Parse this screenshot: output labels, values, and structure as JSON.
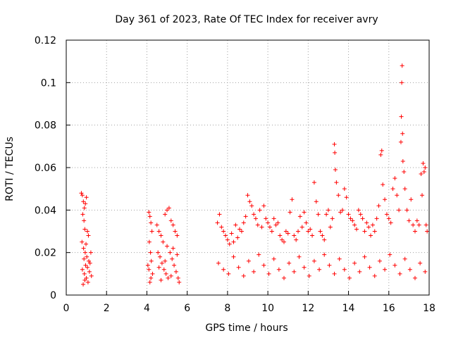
{
  "chart_data": {
    "type": "scatter",
    "title": "Day 361 of 2023, Rate Of TEC Index for receiver avry",
    "xlabel": "GPS time / hours",
    "ylabel": "ROTI / TECUs",
    "xlim": [
      0,
      18
    ],
    "ylim": [
      0,
      0.12
    ],
    "xticks": [
      0,
      2,
      4,
      6,
      8,
      10,
      12,
      14,
      16,
      18
    ],
    "yticks": [
      0,
      0.02,
      0.04,
      0.06,
      0.08,
      0.1,
      0.12
    ],
    "xtick_labels": [
      "0",
      "2",
      "4",
      "6",
      "8",
      "10",
      "12",
      "14",
      "16",
      "18"
    ],
    "ytick_labels": [
      "0",
      "0.02",
      "0.04",
      "0.06",
      "0.08",
      "0.1",
      "0.12"
    ],
    "grid": true,
    "marker": "+",
    "color": "#ff0000",
    "series": [
      {
        "name": "ROTI",
        "points": [
          [
            0.75,
            0.048
          ],
          [
            0.8,
            0.047
          ],
          [
            0.85,
            0.044
          ],
          [
            0.9,
            0.041
          ],
          [
            0.95,
            0.043
          ],
          [
            1.0,
            0.046
          ],
          [
            0.82,
            0.038
          ],
          [
            0.88,
            0.035
          ],
          [
            0.92,
            0.031
          ],
          [
            1.05,
            0.03
          ],
          [
            1.1,
            0.028
          ],
          [
            0.78,
            0.025
          ],
          [
            0.86,
            0.022
          ],
          [
            0.94,
            0.02
          ],
          [
            1.02,
            0.018
          ],
          [
            1.12,
            0.016
          ],
          [
            1.18,
            0.015
          ],
          [
            0.8,
            0.012
          ],
          [
            0.9,
            0.01
          ],
          [
            1.0,
            0.008
          ],
          [
            1.08,
            0.006
          ],
          [
            0.84,
            0.005
          ],
          [
            0.96,
            0.014
          ],
          [
            1.15,
            0.011
          ],
          [
            1.25,
            0.009
          ],
          [
            1.22,
            0.02
          ],
          [
            0.98,
            0.024
          ],
          [
            0.88,
            0.017
          ],
          [
            1.05,
            0.013
          ],
          [
            0.92,
            0.007
          ],
          [
            4.1,
            0.039
          ],
          [
            4.15,
            0.037
          ],
          [
            4.2,
            0.034
          ],
          [
            4.25,
            0.03
          ],
          [
            4.12,
            0.025
          ],
          [
            4.18,
            0.02
          ],
          [
            4.22,
            0.016
          ],
          [
            4.1,
            0.012
          ],
          [
            4.2,
            0.008
          ],
          [
            4.15,
            0.006
          ],
          [
            4.28,
            0.01
          ],
          [
            4.05,
            0.014
          ],
          [
            4.5,
            0.033
          ],
          [
            4.6,
            0.03
          ],
          [
            4.7,
            0.028
          ],
          [
            4.8,
            0.025
          ],
          [
            4.9,
            0.038
          ],
          [
            5.0,
            0.04
          ],
          [
            5.1,
            0.041
          ],
          [
            5.2,
            0.035
          ],
          [
            5.3,
            0.033
          ],
          [
            5.4,
            0.03
          ],
          [
            5.5,
            0.028
          ],
          [
            4.55,
            0.02
          ],
          [
            4.65,
            0.018
          ],
          [
            4.75,
            0.015
          ],
          [
            4.85,
            0.012
          ],
          [
            4.95,
            0.01
          ],
          [
            5.05,
            0.008
          ],
          [
            5.15,
            0.02
          ],
          [
            5.25,
            0.017
          ],
          [
            5.35,
            0.014
          ],
          [
            5.45,
            0.011
          ],
          [
            5.55,
            0.008
          ],
          [
            5.6,
            0.006
          ],
          [
            4.7,
            0.007
          ],
          [
            4.6,
            0.013
          ],
          [
            5.0,
            0.023
          ],
          [
            5.3,
            0.022
          ],
          [
            5.5,
            0.019
          ],
          [
            5.2,
            0.009
          ],
          [
            4.9,
            0.016
          ],
          [
            7.5,
            0.034
          ],
          [
            7.6,
            0.038
          ],
          [
            7.7,
            0.032
          ],
          [
            7.8,
            0.03
          ],
          [
            7.9,
            0.028
          ],
          [
            8.0,
            0.026
          ],
          [
            8.1,
            0.024
          ],
          [
            8.2,
            0.029
          ],
          [
            8.3,
            0.025
          ],
          [
            8.4,
            0.033
          ],
          [
            8.5,
            0.027
          ],
          [
            8.6,
            0.031
          ],
          [
            8.7,
            0.03
          ],
          [
            8.8,
            0.034
          ],
          [
            8.9,
            0.037
          ],
          [
            9.0,
            0.047
          ],
          [
            9.1,
            0.044
          ],
          [
            9.2,
            0.042
          ],
          [
            9.3,
            0.038
          ],
          [
            9.4,
            0.036
          ],
          [
            9.5,
            0.033
          ],
          [
            9.6,
            0.04
          ],
          [
            9.7,
            0.032
          ],
          [
            9.8,
            0.042
          ],
          [
            9.9,
            0.036
          ],
          [
            10.0,
            0.034
          ],
          [
            10.1,
            0.032
          ],
          [
            10.2,
            0.03
          ],
          [
            10.3,
            0.036
          ],
          [
            10.4,
            0.033
          ],
          [
            10.5,
            0.034
          ],
          [
            10.6,
            0.028
          ],
          [
            10.7,
            0.026
          ],
          [
            10.8,
            0.025
          ],
          [
            10.9,
            0.03
          ],
          [
            11.0,
            0.029
          ],
          [
            11.1,
            0.039
          ],
          [
            11.2,
            0.045
          ],
          [
            11.3,
            0.028
          ],
          [
            11.4,
            0.026
          ],
          [
            11.5,
            0.03
          ],
          [
            11.6,
            0.037
          ],
          [
            11.7,
            0.032
          ],
          [
            11.8,
            0.039
          ],
          [
            11.9,
            0.034
          ],
          [
            12.0,
            0.03
          ],
          [
            12.1,
            0.031
          ],
          [
            12.2,
            0.028
          ],
          [
            12.3,
            0.053
          ],
          [
            12.4,
            0.044
          ],
          [
            12.5,
            0.038
          ],
          [
            12.6,
            0.03
          ],
          [
            12.7,
            0.028
          ],
          [
            12.8,
            0.026
          ],
          [
            12.9,
            0.038
          ],
          [
            13.0,
            0.04
          ],
          [
            13.1,
            0.032
          ],
          [
            13.2,
            0.036
          ],
          [
            13.3,
            0.071
          ],
          [
            13.32,
            0.067
          ],
          [
            13.35,
            0.059
          ],
          [
            13.4,
            0.053
          ],
          [
            13.5,
            0.047
          ],
          [
            13.6,
            0.039
          ],
          [
            13.7,
            0.04
          ],
          [
            13.8,
            0.05
          ],
          [
            13.9,
            0.046
          ],
          [
            14.0,
            0.038
          ],
          [
            14.1,
            0.036
          ],
          [
            14.2,
            0.035
          ],
          [
            14.3,
            0.033
          ],
          [
            14.4,
            0.031
          ],
          [
            14.5,
            0.04
          ],
          [
            14.6,
            0.038
          ],
          [
            14.7,
            0.036
          ],
          [
            14.8,
            0.03
          ],
          [
            14.9,
            0.034
          ],
          [
            15.0,
            0.032
          ],
          [
            15.1,
            0.028
          ],
          [
            15.2,
            0.033
          ],
          [
            15.3,
            0.03
          ],
          [
            15.4,
            0.036
          ],
          [
            15.5,
            0.042
          ],
          [
            15.6,
            0.066
          ],
          [
            15.65,
            0.068
          ],
          [
            15.7,
            0.052
          ],
          [
            15.8,
            0.045
          ],
          [
            15.9,
            0.038
          ],
          [
            16.0,
            0.036
          ],
          [
            16.1,
            0.034
          ],
          [
            16.2,
            0.05
          ],
          [
            16.3,
            0.055
          ],
          [
            16.4,
            0.047
          ],
          [
            16.5,
            0.04
          ],
          [
            16.6,
            0.072
          ],
          [
            16.62,
            0.084
          ],
          [
            16.64,
            0.1
          ],
          [
            16.66,
            0.108
          ],
          [
            16.68,
            0.076
          ],
          [
            16.7,
            0.063
          ],
          [
            16.75,
            0.058
          ],
          [
            16.8,
            0.05
          ],
          [
            16.9,
            0.04
          ],
          [
            17.0,
            0.035
          ],
          [
            17.1,
            0.045
          ],
          [
            17.2,
            0.033
          ],
          [
            17.3,
            0.03
          ],
          [
            17.4,
            0.035
          ],
          [
            17.5,
            0.033
          ],
          [
            17.6,
            0.057
          ],
          [
            17.65,
            0.047
          ],
          [
            17.7,
            0.062
          ],
          [
            17.75,
            0.058
          ],
          [
            17.8,
            0.06
          ],
          [
            17.85,
            0.033
          ],
          [
            17.9,
            0.03
          ],
          [
            7.55,
            0.015
          ],
          [
            7.8,
            0.012
          ],
          [
            8.05,
            0.01
          ],
          [
            8.3,
            0.018
          ],
          [
            8.55,
            0.013
          ],
          [
            8.8,
            0.009
          ],
          [
            9.05,
            0.016
          ],
          [
            9.3,
            0.011
          ],
          [
            9.55,
            0.019
          ],
          [
            9.8,
            0.014
          ],
          [
            10.05,
            0.01
          ],
          [
            10.3,
            0.017
          ],
          [
            10.55,
            0.012
          ],
          [
            10.8,
            0.008
          ],
          [
            11.05,
            0.015
          ],
          [
            11.3,
            0.011
          ],
          [
            11.55,
            0.018
          ],
          [
            11.8,
            0.013
          ],
          [
            12.05,
            0.009
          ],
          [
            12.3,
            0.016
          ],
          [
            12.55,
            0.012
          ],
          [
            12.8,
            0.019
          ],
          [
            13.05,
            0.014
          ],
          [
            13.3,
            0.01
          ],
          [
            13.55,
            0.017
          ],
          [
            13.8,
            0.012
          ],
          [
            14.05,
            0.008
          ],
          [
            14.3,
            0.015
          ],
          [
            14.55,
            0.011
          ],
          [
            14.8,
            0.018
          ],
          [
            15.05,
            0.013
          ],
          [
            15.3,
            0.009
          ],
          [
            15.55,
            0.016
          ],
          [
            15.8,
            0.012
          ],
          [
            16.05,
            0.019
          ],
          [
            16.3,
            0.014
          ],
          [
            16.55,
            0.01
          ],
          [
            16.8,
            0.017
          ],
          [
            17.05,
            0.012
          ],
          [
            17.3,
            0.008
          ],
          [
            17.55,
            0.015
          ],
          [
            17.8,
            0.011
          ]
        ]
      }
    ]
  }
}
